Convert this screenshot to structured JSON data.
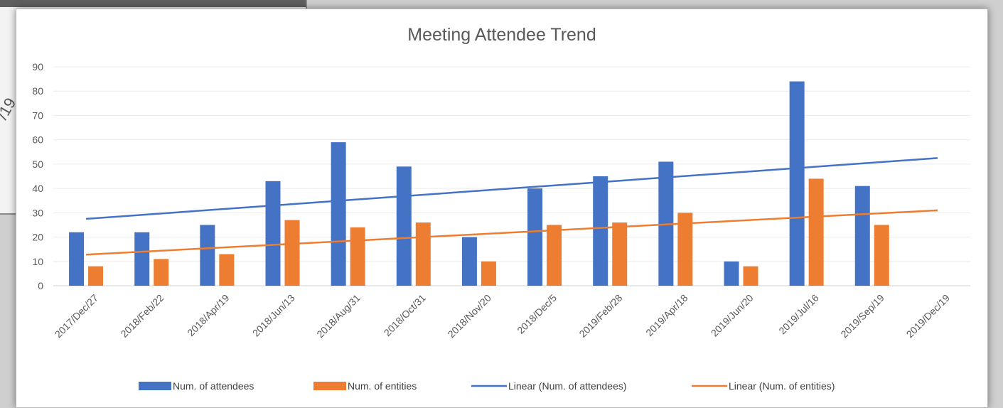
{
  "background_fragment": "/19",
  "chart_data": {
    "type": "bar",
    "title": "Meeting Attendee Trend",
    "xlabel": "",
    "ylabel": "",
    "ylim": [
      0,
      90
    ],
    "yticks": [
      0,
      10,
      20,
      30,
      40,
      50,
      60,
      70,
      80,
      90
    ],
    "grid": true,
    "legend_position": "bottom",
    "categories": [
      "2017/Dec/27",
      "2018/Feb/22",
      "2018/Apr/19",
      "2018/Jun/13",
      "2018/Aug/31",
      "2018/Oct/31",
      "2018/Nov/20",
      "2018/Dec/5",
      "2019/Feb/28",
      "2019/Apr/18",
      "2019/Jun/20",
      "2019/Jul/16",
      "2019/Sep/19",
      "2019/Dec/19"
    ],
    "series": [
      {
        "name": "Num. of attendees",
        "type": "bar",
        "color": "#4472C4",
        "values": [
          22,
          22,
          25,
          43,
          59,
          49,
          20,
          40,
          45,
          51,
          10,
          84,
          41,
          null
        ]
      },
      {
        "name": "Num. of entities",
        "type": "bar",
        "color": "#ED7D31",
        "values": [
          8,
          11,
          13,
          27,
          24,
          26,
          10,
          25,
          26,
          30,
          8,
          44,
          25,
          null
        ]
      }
    ],
    "trendlines": [
      {
        "name": "Linear (Num. of attendees)",
        "color": "#4472C4",
        "start": 27.5,
        "end": 52.5
      },
      {
        "name": "Linear (Num. of entities)",
        "color": "#ED7D31",
        "start": 12.8,
        "end": 31.0
      }
    ],
    "legend": [
      {
        "label": "Num. of attendees",
        "kind": "bar",
        "color": "#4472C4"
      },
      {
        "label": "Num. of entities",
        "kind": "bar",
        "color": "#ED7D31"
      },
      {
        "label": "Linear (Num. of attendees)",
        "kind": "line",
        "color": "#4472C4"
      },
      {
        "label": "Linear (Num. of entities)",
        "kind": "line",
        "color": "#ED7D31"
      }
    ]
  }
}
